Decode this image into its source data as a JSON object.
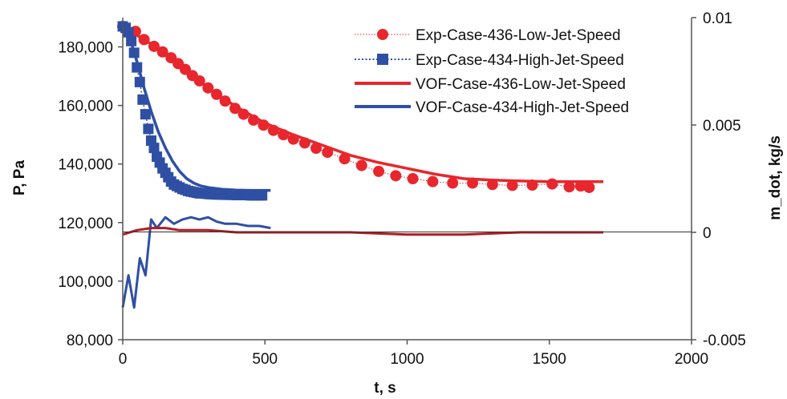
{
  "chart_data": {
    "type": "scatter",
    "xlabel": "t, s",
    "ylabel": "P, Pa",
    "y2label": "m_dot, kg/s",
    "xlim": [
      0,
      2000
    ],
    "ylim": [
      80000,
      190000
    ],
    "y2lim": [
      -0.005,
      0.01
    ],
    "xticks": [
      "0",
      "500",
      "1000",
      "1500",
      "2000"
    ],
    "yticks": [
      "80,000",
      "100,000",
      "120,000",
      "140,000",
      "160,000",
      "180,000"
    ],
    "y2ticks": [
      "-0.005",
      "0",
      "0.005",
      "0.01"
    ],
    "grid": false,
    "legend_position": "top-right",
    "colors": {
      "red": "#e8262d",
      "blue": "#2e4fa3",
      "dark_red": "#b01c22"
    },
    "series": [
      {
        "name": "Exp-Case-436-Low-Jet-Speed",
        "axis": "left",
        "style": "dotted-circles",
        "x": [
          0,
          45,
          75,
          110,
          140,
          170,
          195,
          220,
          245,
          270,
          300,
          330,
          360,
          395,
          425,
          460,
          495,
          530,
          565,
          600,
          640,
          680,
          720,
          780,
          840,
          900,
          960,
          1020,
          1090,
          1160,
          1230,
          1300,
          1370,
          1440,
          1510,
          1570,
          1610,
          1640
        ],
        "y": [
          187000,
          185300,
          182500,
          180200,
          178300,
          176300,
          174300,
          172300,
          170200,
          168400,
          166000,
          163800,
          161500,
          159000,
          157000,
          155000,
          153300,
          151500,
          150000,
          148500,
          147200,
          145400,
          144000,
          141800,
          139500,
          137500,
          136000,
          135000,
          134000,
          133500,
          133500,
          133000,
          132700,
          132800,
          133200,
          132200,
          132500,
          132000
        ]
      },
      {
        "name": "Exp-Case-434-High-Jet-Speed",
        "axis": "left",
        "style": "dotted-squares",
        "x": [
          0,
          10,
          20,
          30,
          40,
          50,
          60,
          70,
          80,
          90,
          100,
          110,
          120,
          130,
          140,
          150,
          160,
          170,
          180,
          190,
          200,
          210,
          220,
          230,
          240,
          250,
          260,
          270,
          280,
          290,
          300,
          310,
          320,
          330,
          340,
          350,
          360,
          370,
          380,
          390,
          400,
          410,
          420,
          430,
          440,
          450,
          460,
          470,
          480,
          490
        ],
        "y": [
          187000,
          186500,
          185000,
          182000,
          178000,
          173000,
          168000,
          162000,
          157000,
          152000,
          148000,
          145500,
          142500,
          140500,
          138500,
          137000,
          135500,
          134000,
          133000,
          132500,
          132000,
          131500,
          131200,
          130800,
          130600,
          130400,
          130200,
          130000,
          130000,
          129900,
          129800,
          129700,
          129700,
          129600,
          129600,
          129600,
          129500,
          129500,
          129500,
          129500,
          129400,
          129400,
          129400,
          129400,
          129400,
          129300,
          129300,
          129300,
          129300,
          129300
        ]
      },
      {
        "name": "VOF-Case-436-Low-Jet-Speed",
        "axis": "left",
        "style": "solid",
        "x": [
          0,
          100,
          200,
          300,
          400,
          500,
          600,
          700,
          800,
          900,
          1000,
          1100,
          1200,
          1300,
          1400,
          1500,
          1600,
          1690
        ],
        "y": [
          187000,
          181000,
          173500,
          166000,
          159500,
          154000,
          150000,
          146500,
          143000,
          140500,
          138500,
          136500,
          135000,
          134500,
          134200,
          134000,
          134000,
          134000
        ]
      },
      {
        "name": "VOF-Case-434-High-Jet-Speed",
        "axis": "left",
        "style": "solid",
        "x": [
          0,
          25,
          50,
          75,
          100,
          125,
          150,
          175,
          200,
          225,
          250,
          275,
          300,
          350,
          400,
          450,
          500,
          520
        ],
        "y": [
          187000,
          183000,
          175000,
          166000,
          158000,
          151000,
          145500,
          141000,
          137500,
          135000,
          133500,
          132500,
          132000,
          131400,
          131100,
          131000,
          131000,
          131000
        ]
      },
      {
        "name": "",
        "axis": "right",
        "style": "mdot-noisy",
        "x": [
          0,
          20,
          40,
          60,
          80,
          100,
          120,
          150,
          180,
          210,
          240,
          270,
          300,
          330,
          360,
          400,
          440,
          480,
          520
        ],
        "y": [
          -0.0035,
          -0.002,
          -0.0035,
          -0.0012,
          -0.002,
          0.0006,
          0.0002,
          0.0007,
          0.0004,
          0.0006,
          0.0007,
          0.0006,
          0.0007,
          0.0005,
          0.0004,
          0.0004,
          0.0003,
          0.0003,
          0.0002
        ]
      },
      {
        "name": "",
        "axis": "right",
        "style": "mdot-smooth",
        "x": [
          0,
          50,
          100,
          150,
          200,
          300,
          400,
          500,
          600,
          700,
          800,
          1000,
          1200,
          1400,
          1600,
          1690
        ],
        "y": [
          -0.0001,
          0.0001,
          0.0002,
          0.0002,
          0.0001,
          0.0001,
          0.0,
          0.0,
          0.0,
          0.0,
          0.0,
          -0.0001,
          -0.0001,
          0.0,
          0.0,
          0.0
        ]
      }
    ]
  }
}
